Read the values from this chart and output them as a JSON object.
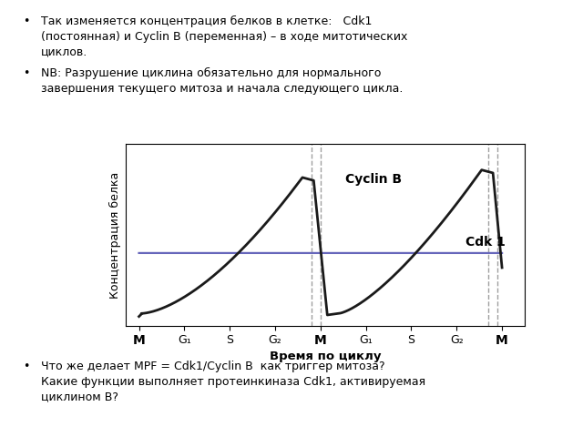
{
  "ylabel": "Концентрация белка",
  "xlabel": "Время по циклу",
  "xtick_labels": [
    "M",
    "G₁",
    "S",
    "G₂",
    "M",
    "G₁",
    "S",
    "G₂",
    "M"
  ],
  "cdk1_label": "Cdk 1",
  "cyclin_label": "Cyclin B",
  "cdk1_color": "#6666bb",
  "cyclin_color": "#1a1a1a",
  "bg_color": "#ffffff",
  "dashed_line_color": "#888888",
  "cdk1_level": 0.46,
  "text_bullet1_line1": "Так изменяется концентрация белков в клетке:   Cdk1",
  "text_bullet1_line2": "(постоянная) и Cyclin B (переменная) – в ходе митотических",
  "text_bullet1_line3": "циклов.",
  "text_bullet2_line1": "NB: Разрушение циклина обязательно для нормального",
  "text_bullet2_line2": "завершения текущего митоза и начала следующего цикла.",
  "text_bullet3_line1": "Что же делает MPF = Cdk1/Cyclin B  как триггер митоза?",
  "text_bullet3_line2": "Какие функции выполняет протеинкиназа Cdk1, активируемая",
  "text_bullet3_line3": "циклином B?"
}
